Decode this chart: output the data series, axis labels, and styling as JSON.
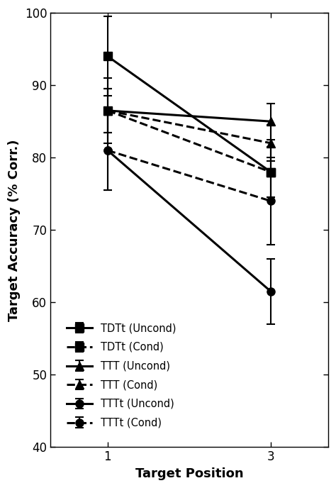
{
  "x": [
    1,
    3
  ],
  "series": [
    {
      "label": "TDTt (Uncond)",
      "y": [
        94.0,
        78.0
      ],
      "yerr": [
        5.5,
        3.5
      ],
      "linestyle": "solid",
      "marker": "s",
      "linewidth": 2.2,
      "markersize": 8
    },
    {
      "label": "TDTt (Cond)",
      "y": [
        86.5,
        78.0
      ],
      "yerr": [
        4.5,
        3.5
      ],
      "linestyle": "dashed",
      "marker": "s",
      "linewidth": 2.2,
      "markersize": 8
    },
    {
      "label": "TTT (Uncond)",
      "y": [
        86.5,
        85.0
      ],
      "yerr": [
        3.0,
        2.5
      ],
      "linestyle": "solid",
      "marker": "^",
      "linewidth": 2.2,
      "markersize": 9
    },
    {
      "label": "TTT (Cond)",
      "y": [
        86.5,
        82.0
      ],
      "yerr": [
        3.0,
        2.5
      ],
      "linestyle": "dashed",
      "marker": "^",
      "linewidth": 2.2,
      "markersize": 9
    },
    {
      "label": "TTTt (Uncond)",
      "y": [
        81.0,
        61.5
      ],
      "yerr": [
        5.5,
        4.5
      ],
      "linestyle": "solid",
      "marker": "o",
      "linewidth": 2.2,
      "markersize": 8
    },
    {
      "label": "TTTt (Cond)",
      "y": [
        81.0,
        74.0
      ],
      "yerr": [
        5.5,
        6.0
      ],
      "linestyle": "dashed",
      "marker": "o",
      "linewidth": 2.2,
      "markersize": 8
    }
  ],
  "xlabel": "Target Position",
  "ylabel": "Target Accuracy (% Corr.)",
  "ylim": [
    40,
    100
  ],
  "yticks": [
    40,
    50,
    60,
    70,
    80,
    90,
    100
  ],
  "xticks": [
    1,
    3
  ],
  "xlim": [
    0.3,
    3.7
  ],
  "background_color": "#ffffff",
  "color": "#000000",
  "capsize": 4,
  "legend_fontsize": 10.5,
  "axis_label_fontsize": 13,
  "tick_fontsize": 12
}
